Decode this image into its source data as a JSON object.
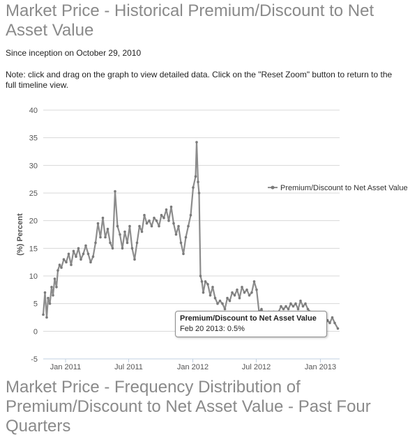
{
  "page": {
    "title": "Market Price - Historical Premium/Discount to Net Asset Value",
    "since": "Since inception on October 29, 2010",
    "note_line1": "Note: click and drag on the graph to view detailed data. Click on the \"Reset Zoom\" button to return to the",
    "note_line2": "full timeline view.",
    "next_title": "Market Price - Frequency Distribution of Premium/Discount to Net Asset Value - Past Four Quarters"
  },
  "tooltip": {
    "title": "Premium/Discount to Net Asset Value",
    "body": "Feb 20 2013: 0.5%"
  },
  "colors": {
    "series": "#8c8c8c",
    "marker": "#7a7a7a",
    "grid": "#d8d8d8",
    "axis": "#c0d0e0",
    "title": "#8a8a8a"
  },
  "chart_data": {
    "type": "line",
    "ylabel": "(%) Percent",
    "ylim": [
      -5,
      40
    ],
    "yticks": [
      -5,
      0,
      5,
      10,
      15,
      20,
      25,
      30,
      35,
      40
    ],
    "xlim": [
      "2010-10-29",
      "2013-02-25"
    ],
    "xticks": [
      {
        "date": "2011-01-01",
        "label": "Jan 2011"
      },
      {
        "date": "2011-07-01",
        "label": "Jul 2011"
      },
      {
        "date": "2012-01-01",
        "label": "Jan 2012"
      },
      {
        "date": "2012-07-01",
        "label": "Jul 2012"
      },
      {
        "date": "2013-01-01",
        "label": "Jan 2013"
      }
    ],
    "grid": true,
    "legend_position": "right",
    "series": [
      {
        "name": "Premium/Discount to Net Asset Value",
        "points": [
          [
            "2010-10-29",
            3.0
          ],
          [
            "2010-11-03",
            7.0
          ],
          [
            "2010-11-08",
            2.5
          ],
          [
            "2010-11-12",
            6.0
          ],
          [
            "2010-11-17",
            5.0
          ],
          [
            "2010-11-22",
            8.0
          ],
          [
            "2010-11-26",
            6.5
          ],
          [
            "2010-12-01",
            9.5
          ],
          [
            "2010-12-06",
            8.0
          ],
          [
            "2010-12-10",
            11.0
          ],
          [
            "2010-12-15",
            12.0
          ],
          [
            "2010-12-20",
            11.5
          ],
          [
            "2010-12-27",
            13.0
          ],
          [
            "2011-01-03",
            12.5
          ],
          [
            "2011-01-10",
            14.0
          ],
          [
            "2011-01-17",
            12.0
          ],
          [
            "2011-01-24",
            14.5
          ],
          [
            "2011-01-31",
            13.5
          ],
          [
            "2011-02-07",
            15.0
          ],
          [
            "2011-02-14",
            13.0
          ],
          [
            "2011-02-21",
            14.0
          ],
          [
            "2011-02-28",
            15.5
          ],
          [
            "2011-03-07",
            14.0
          ],
          [
            "2011-03-14",
            12.5
          ],
          [
            "2011-03-21",
            13.5
          ],
          [
            "2011-03-28",
            16.0
          ],
          [
            "2011-04-04",
            19.5
          ],
          [
            "2011-04-11",
            17.0
          ],
          [
            "2011-04-18",
            20.5
          ],
          [
            "2011-04-25",
            17.0
          ],
          [
            "2011-05-02",
            18.5
          ],
          [
            "2011-05-09",
            16.0
          ],
          [
            "2011-05-16",
            15.0
          ],
          [
            "2011-05-23",
            25.3
          ],
          [
            "2011-05-30",
            19.0
          ],
          [
            "2011-06-06",
            17.5
          ],
          [
            "2011-06-13",
            15.0
          ],
          [
            "2011-06-20",
            18.0
          ],
          [
            "2011-06-27",
            16.0
          ],
          [
            "2011-07-04",
            19.0
          ],
          [
            "2011-07-11",
            15.0
          ],
          [
            "2011-07-18",
            13.0
          ],
          [
            "2011-07-25",
            16.0
          ],
          [
            "2011-08-01",
            19.0
          ],
          [
            "2011-08-08",
            18.0
          ],
          [
            "2011-08-15",
            21.0
          ],
          [
            "2011-08-22",
            19.5
          ],
          [
            "2011-08-29",
            20.0
          ],
          [
            "2011-09-05",
            19.0
          ],
          [
            "2011-09-12",
            20.5
          ],
          [
            "2011-09-19",
            20.0
          ],
          [
            "2011-09-26",
            19.0
          ],
          [
            "2011-10-03",
            21.0
          ],
          [
            "2011-10-10",
            20.5
          ],
          [
            "2011-10-17",
            22.0
          ],
          [
            "2011-10-24",
            20.0
          ],
          [
            "2011-10-31",
            22.5
          ],
          [
            "2011-11-07",
            19.5
          ],
          [
            "2011-11-14",
            17.5
          ],
          [
            "2011-11-21",
            19.0
          ],
          [
            "2011-11-28",
            16.0
          ],
          [
            "2011-12-05",
            14.0
          ],
          [
            "2011-12-12",
            17.0
          ],
          [
            "2011-12-19",
            19.0
          ],
          [
            "2011-12-26",
            21.0
          ],
          [
            "2012-01-02",
            26.0
          ],
          [
            "2012-01-09",
            28.0
          ],
          [
            "2012-01-12",
            34.2
          ],
          [
            "2012-01-16",
            27.0
          ],
          [
            "2012-01-19",
            25.0
          ],
          [
            "2012-01-23",
            10.0
          ],
          [
            "2012-01-27",
            9.0
          ],
          [
            "2012-01-31",
            7.0
          ],
          [
            "2012-02-06",
            9.0
          ],
          [
            "2012-02-13",
            8.5
          ],
          [
            "2012-02-20",
            6.5
          ],
          [
            "2012-02-27",
            8.0
          ],
          [
            "2012-03-05",
            6.0
          ],
          [
            "2012-03-12",
            5.0
          ],
          [
            "2012-03-19",
            5.5
          ],
          [
            "2012-03-26",
            5.0
          ],
          [
            "2012-04-02",
            4.0
          ],
          [
            "2012-04-09",
            6.0
          ],
          [
            "2012-04-16",
            5.5
          ],
          [
            "2012-04-23",
            7.0
          ],
          [
            "2012-04-30",
            6.5
          ],
          [
            "2012-05-07",
            7.5
          ],
          [
            "2012-05-14",
            6.0
          ],
          [
            "2012-05-21",
            8.0
          ],
          [
            "2012-05-28",
            7.0
          ],
          [
            "2012-06-04",
            7.5
          ],
          [
            "2012-06-11",
            6.5
          ],
          [
            "2012-06-18",
            7.0
          ],
          [
            "2012-06-25",
            9.0
          ],
          [
            "2012-07-02",
            7.5
          ],
          [
            "2012-07-09",
            3.5
          ],
          [
            "2012-07-16",
            4.0
          ],
          [
            "2012-07-23",
            3.0
          ],
          [
            "2012-07-30",
            2.8
          ],
          [
            "2012-08-06",
            3.5
          ],
          [
            "2012-08-13",
            3.0
          ],
          [
            "2012-08-20",
            3.5
          ],
          [
            "2012-08-27",
            2.5
          ],
          [
            "2012-09-03",
            3.5
          ],
          [
            "2012-09-10",
            4.5
          ],
          [
            "2012-09-17",
            4.0
          ],
          [
            "2012-09-24",
            4.5
          ],
          [
            "2012-10-01",
            4.0
          ],
          [
            "2012-10-08",
            5.0
          ],
          [
            "2012-10-15",
            4.5
          ],
          [
            "2012-10-22",
            5.0
          ],
          [
            "2012-10-29",
            4.0
          ],
          [
            "2012-11-05",
            5.5
          ],
          [
            "2012-11-12",
            4.5
          ],
          [
            "2012-11-19",
            5.0
          ],
          [
            "2012-11-26",
            4.0
          ],
          [
            "2012-12-03",
            3.5
          ],
          [
            "2012-12-10",
            2.5
          ],
          [
            "2012-12-17",
            2.0
          ],
          [
            "2012-12-24",
            1.5
          ],
          [
            "2012-12-31",
            2.0
          ],
          [
            "2013-01-07",
            1.5
          ],
          [
            "2013-01-14",
            1.0
          ],
          [
            "2013-01-21",
            2.0
          ],
          [
            "2013-01-28",
            1.5
          ],
          [
            "2013-02-04",
            2.5
          ],
          [
            "2013-02-11",
            1.5
          ],
          [
            "2013-02-20",
            0.5
          ]
        ]
      }
    ]
  }
}
